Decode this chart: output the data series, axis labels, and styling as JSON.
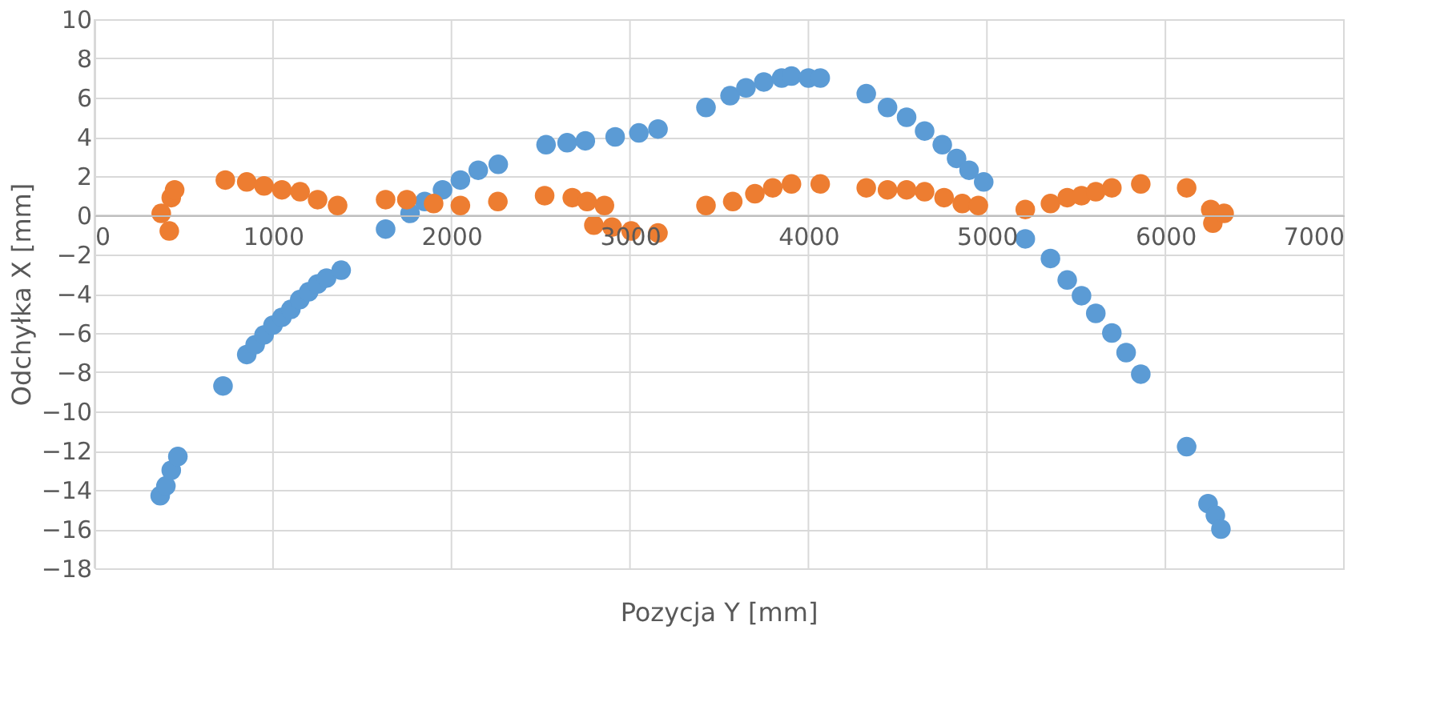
{
  "chart_data": {
    "type": "scatter",
    "xlabel": "Pozycja Y [mm]",
    "ylabel": "Odchyłka X [mm]",
    "xlim": [
      0,
      7000
    ],
    "xticks": [
      0,
      1000,
      2000,
      3000,
      4000,
      5000,
      6000,
      7000
    ],
    "ylim": [
      -18,
      10
    ],
    "yticks": [
      -18,
      -16,
      -14,
      -12,
      -10,
      -8,
      -6,
      -4,
      -2,
      0,
      2,
      4,
      6,
      8,
      10
    ],
    "grid": true,
    "legend": false,
    "marker": "circle",
    "series": [
      {
        "color": "#5b9bd5",
        "x": [
          368,
          400,
          430,
          467,
          720,
          853,
          900,
          950,
          1000,
          1050,
          1100,
          1150,
          1200,
          1250,
          1300,
          1382,
          1631,
          1768,
          1850,
          1950,
          2050,
          2150,
          2262,
          2530,
          2648,
          2750,
          2917,
          3050,
          3157,
          3426,
          3561,
          3650,
          3750,
          3850,
          3905,
          4000,
          4066,
          4324,
          4443,
          4550,
          4651,
          4750,
          4830,
          4900,
          4982,
          5215,
          5356,
          5450,
          5530,
          5610,
          5700,
          5780,
          5862,
          6119,
          6239,
          6280,
          6311
        ],
        "values": [
          -14.3,
          -13.8,
          -13.0,
          -12.3,
          -8.7,
          -7.1,
          -6.6,
          -6.1,
          -5.6,
          -5.2,
          -4.8,
          -4.3,
          -3.9,
          -3.5,
          -3.2,
          -2.8,
          -0.7,
          0.1,
          0.7,
          1.3,
          1.8,
          2.3,
          2.6,
          3.6,
          3.7,
          3.8,
          4.0,
          4.2,
          4.4,
          5.5,
          6.1,
          6.5,
          6.8,
          7.0,
          7.1,
          7.0,
          7.0,
          6.2,
          5.5,
          5.0,
          4.3,
          3.6,
          2.9,
          2.3,
          1.7,
          -1.2,
          -2.2,
          -3.3,
          -4.1,
          -5.0,
          -6.0,
          -7.0,
          -8.1,
          -11.8,
          -14.7,
          -15.3,
          -16.0
        ]
      },
      {
        "color": "#ed7d31",
        "x": [
          374,
          419,
          430,
          449,
          733,
          853,
          950,
          1050,
          1152,
          1250,
          1362,
          1631,
          1750,
          1900,
          2050,
          2260,
          2522,
          2677,
          2760,
          2857,
          2798,
          2900,
          3007,
          3157,
          3426,
          3576,
          3700,
          3800,
          3905,
          4066,
          4324,
          4443,
          4550,
          4651,
          4760,
          4862,
          4952,
          5215,
          5356,
          5450,
          5530,
          5610,
          5700,
          5862,
          6119,
          6254,
          6266,
          6329
        ],
        "values": [
          0.1,
          -0.8,
          0.9,
          1.3,
          1.8,
          1.7,
          1.5,
          1.3,
          1.2,
          0.8,
          0.5,
          0.8,
          0.8,
          0.6,
          0.5,
          0.7,
          1.0,
          0.9,
          0.7,
          0.5,
          -0.5,
          -0.6,
          -0.8,
          -0.9,
          0.5,
          0.7,
          1.1,
          1.4,
          1.6,
          1.6,
          1.4,
          1.3,
          1.3,
          1.2,
          0.9,
          0.6,
          0.5,
          0.3,
          0.6,
          0.9,
          1.0,
          1.2,
          1.4,
          1.6,
          1.4,
          0.3,
          -0.4,
          0.1
        ]
      }
    ]
  }
}
